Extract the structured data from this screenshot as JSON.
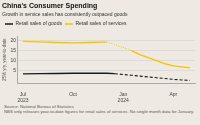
{
  "chart_data": {
    "type": "line",
    "title": "China's Consumer Spending",
    "subtitle": "Growth in service sales has consistently outpaced goods",
    "y_label": "25% y/y, year-to-date",
    "source": "Source: National Bureau of Statistics",
    "note": "NBS only releases year-to-date figures for retail sales of services. No single month data for January.",
    "xlim": [
      -0.3,
      10.3
    ],
    "xticks": [
      {
        "value": 0,
        "label": "Jul\n2023"
      },
      {
        "value": 3,
        "label": "Oct"
      },
      {
        "value": 6,
        "label": "Jan\n2024"
      },
      {
        "value": 9,
        "label": "Apr"
      }
    ],
    "ylim": [
      -1,
      22
    ],
    "yticks": [
      5,
      10,
      15,
      20
    ],
    "grid": true,
    "legend": "upper left",
    "series": [
      {
        "name": "Retail sales of goods",
        "color": "#1a1a1a",
        "line_style": "solid",
        "x": [
          0,
          1,
          2,
          3,
          4,
          5,
          5.5
        ],
        "values": [
          3.5,
          3.6,
          3.7,
          3.8,
          3.9,
          3.8,
          3.6
        ]
      },
      {
        "name": "Retail sales of goods",
        "color": "#1a1a1a",
        "line_style": "dashed",
        "x": [
          5.5,
          6.0,
          6.5,
          7.0,
          7.5,
          8.0,
          8.5,
          9.0,
          9.5,
          10.0
        ],
        "values": [
          3.6,
          3.2,
          2.8,
          2.4,
          2.0,
          1.6,
          1.2,
          0.8,
          0.5,
          0.3
        ]
      },
      {
        "name": "Retail sales of services",
        "color": "#f5c400",
        "line_style": "solid",
        "x": [
          0,
          1,
          2,
          3,
          4,
          5
        ],
        "values": [
          19.5,
          19.3,
          19.0,
          18.8,
          19.0,
          19.2
        ]
      },
      {
        "name": "Retail sales of services",
        "color": "#f5c400",
        "line_style": "dotted",
        "x": [
          5,
          5.5,
          6.0,
          6.5
        ],
        "values": [
          19.2,
          18.0,
          16.5,
          15.0
        ]
      },
      {
        "name": "Retail sales of services",
        "color": "#f5c400",
        "line_style": "solid",
        "x": [
          6.5,
          7.0,
          7.5,
          8.0,
          8.5,
          9.0,
          9.5,
          10.0
        ],
        "values": [
          15.0,
          13.0,
          11.5,
          10.0,
          8.5,
          7.5,
          7.0,
          6.5
        ]
      }
    ]
  }
}
